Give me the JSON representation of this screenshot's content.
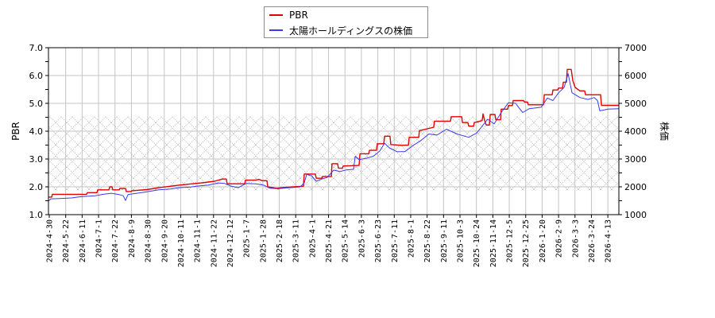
{
  "legend": {
    "items": [
      {
        "label": "PBR",
        "color": "#e00000"
      },
      {
        "label": "太陽ホールディングスの株価",
        "color": "#3a3aee"
      }
    ]
  },
  "axes": {
    "left_label": "PBR",
    "right_label": "株価",
    "left_ticks": [
      "1.0",
      "2.0",
      "3.0",
      "4.0",
      "5.0",
      "6.0",
      "7.0"
    ],
    "right_ticks": [
      "1000",
      "2000",
      "3000",
      "4000",
      "5000",
      "6000",
      "7000"
    ]
  },
  "chart_data": {
    "type": "line",
    "title": "",
    "xlabel": "",
    "ylabel": "PBR",
    "y2label": "株価",
    "ylim": [
      1.0,
      7.0
    ],
    "y2lim": [
      1000,
      7000
    ],
    "grid": true,
    "legend_position": "top-center",
    "x_note": "x values are positions in tick-interval units (0 = 2024-4-30, 34 = 2026-4-13)",
    "categories": [
      "2024-4-30",
      "2024-5-22",
      "2024-6-11",
      "2024-7-1",
      "2024-7-22",
      "2024-8-9",
      "2024-8-30",
      "2024-9-20",
      "2024-10-11",
      "2024-11-1",
      "2024-11-22",
      "2024-12-12",
      "2025-1-7",
      "2025-1-28",
      "2025-2-18",
      "2025-3-11",
      "2025-4-1",
      "2025-4-21",
      "2025-5-14",
      "2025-6-3",
      "2025-6-23",
      "2025-7-11",
      "2025-8-1",
      "2025-8-22",
      "2025-9-11",
      "2025-10-3",
      "2025-10-24",
      "2025-11-14",
      "2025-12-5",
      "2025-12-25",
      "2026-1-20",
      "2026-2-9",
      "2026-3-3",
      "2026-3-24",
      "2026-4-13"
    ],
    "industry_pbr_band": {
      "low": 1.86,
      "high": 4.54,
      "style": "crosshatch"
    },
    "series": [
      {
        "name": "PBR",
        "axis": "left",
        "color": "#e00000",
        "points": [
          [
            -0.05,
            1.63
          ],
          [
            0.15,
            1.63
          ],
          [
            0.19,
            1.73
          ],
          [
            2.27,
            1.73
          ],
          [
            2.32,
            1.79
          ],
          [
            2.9,
            1.79
          ],
          [
            2.95,
            1.89
          ],
          [
            3.63,
            1.89
          ],
          [
            3.68,
            2.0
          ],
          [
            3.82,
            2.0
          ],
          [
            3.87,
            1.89
          ],
          [
            4.26,
            1.89
          ],
          [
            4.3,
            1.94
          ],
          [
            4.64,
            1.94
          ],
          [
            4.69,
            1.83
          ],
          [
            4.98,
            1.83
          ],
          [
            5.03,
            1.86
          ],
          [
            5.95,
            1.9
          ],
          [
            6.67,
            1.97
          ],
          [
            7.88,
            2.06
          ],
          [
            9.24,
            2.14
          ],
          [
            10.06,
            2.2
          ],
          [
            10.54,
            2.28
          ],
          [
            10.78,
            2.28
          ],
          [
            10.83,
            2.11
          ],
          [
            11.51,
            2.11
          ],
          [
            11.9,
            2.11
          ],
          [
            11.94,
            2.24
          ],
          [
            12.57,
            2.24
          ],
          [
            12.77,
            2.27
          ],
          [
            12.96,
            2.22
          ],
          [
            13.25,
            2.22
          ],
          [
            13.3,
            2.0
          ],
          [
            13.83,
            1.95
          ],
          [
            14.31,
            1.98
          ],
          [
            15.38,
            2.02
          ],
          [
            15.47,
            2.02
          ],
          [
            15.52,
            2.46
          ],
          [
            16.2,
            2.46
          ],
          [
            16.25,
            2.31
          ],
          [
            16.59,
            2.31
          ],
          [
            16.63,
            2.37
          ],
          [
            17.17,
            2.37
          ],
          [
            17.21,
            2.83
          ],
          [
            17.55,
            2.83
          ],
          [
            17.6,
            2.67
          ],
          [
            17.84,
            2.67
          ],
          [
            17.89,
            2.75
          ],
          [
            18.86,
            2.77
          ],
          [
            18.91,
            3.19
          ],
          [
            19.44,
            3.19
          ],
          [
            19.49,
            3.31
          ],
          [
            19.92,
            3.31
          ],
          [
            19.97,
            3.55
          ],
          [
            20.36,
            3.55
          ],
          [
            20.41,
            3.82
          ],
          [
            20.74,
            3.82
          ],
          [
            20.79,
            3.52
          ],
          [
            21.42,
            3.49
          ],
          [
            21.86,
            3.5
          ],
          [
            21.91,
            3.78
          ],
          [
            22.49,
            3.78
          ],
          [
            22.53,
            4.02
          ],
          [
            23.11,
            4.1
          ],
          [
            23.4,
            4.14
          ],
          [
            23.45,
            4.36
          ],
          [
            24.42,
            4.36
          ],
          [
            24.47,
            4.52
          ],
          [
            25.1,
            4.52
          ],
          [
            25.15,
            4.31
          ],
          [
            25.48,
            4.31
          ],
          [
            25.53,
            4.18
          ],
          [
            25.82,
            4.18
          ],
          [
            25.87,
            4.31
          ],
          [
            26.35,
            4.38
          ],
          [
            26.4,
            4.62
          ],
          [
            26.5,
            4.38
          ],
          [
            26.6,
            4.22
          ],
          [
            26.79,
            4.22
          ],
          [
            26.84,
            4.6
          ],
          [
            27.13,
            4.6
          ],
          [
            27.18,
            4.41
          ],
          [
            27.47,
            4.41
          ],
          [
            27.51,
            4.79
          ],
          [
            27.9,
            4.79
          ],
          [
            27.95,
            4.92
          ],
          [
            28.19,
            4.92
          ],
          [
            28.24,
            5.1
          ],
          [
            28.87,
            5.1
          ],
          [
            28.92,
            5.05
          ],
          [
            29.11,
            5.05
          ],
          [
            29.16,
            4.95
          ],
          [
            30.08,
            4.95
          ],
          [
            30.13,
            5.31
          ],
          [
            30.61,
            5.31
          ],
          [
            30.66,
            5.48
          ],
          [
            30.95,
            5.48
          ],
          [
            31.0,
            5.55
          ],
          [
            31.24,
            5.55
          ],
          [
            31.29,
            5.76
          ],
          [
            31.48,
            5.76
          ],
          [
            31.53,
            6.22
          ],
          [
            31.77,
            6.22
          ],
          [
            31.87,
            5.81
          ],
          [
            32.01,
            5.57
          ],
          [
            32.3,
            5.45
          ],
          [
            32.59,
            5.45
          ],
          [
            32.64,
            5.31
          ],
          [
            33.56,
            5.31
          ],
          [
            33.61,
            4.93
          ],
          [
            34.67,
            4.93
          ]
        ]
      },
      {
        "name": "太陽ホールディングスの株価",
        "axis": "right",
        "color": "#3a3aee",
        "points": [
          [
            -0.05,
            1490
          ],
          [
            0.1,
            1570
          ],
          [
            0.63,
            1580
          ],
          [
            1.35,
            1600
          ],
          [
            1.84,
            1640
          ],
          [
            2.32,
            1660
          ],
          [
            2.8,
            1680
          ],
          [
            3.29,
            1730
          ],
          [
            3.77,
            1770
          ],
          [
            4.26,
            1720
          ],
          [
            4.5,
            1680
          ],
          [
            4.64,
            1510
          ],
          [
            4.79,
            1720
          ],
          [
            4.98,
            1740
          ],
          [
            5.71,
            1800
          ],
          [
            6.67,
            1890
          ],
          [
            7.4,
            1920
          ],
          [
            7.88,
            1970
          ],
          [
            8.61,
            1990
          ],
          [
            9.09,
            2030
          ],
          [
            9.67,
            2060
          ],
          [
            10.3,
            2140
          ],
          [
            10.69,
            2120
          ],
          [
            11.03,
            2030
          ],
          [
            11.51,
            1970
          ],
          [
            11.75,
            2050
          ],
          [
            11.99,
            2120
          ],
          [
            12.57,
            2110
          ],
          [
            13.06,
            2060
          ],
          [
            13.44,
            1950
          ],
          [
            13.93,
            1930
          ],
          [
            14.41,
            1960
          ],
          [
            14.89,
            1980
          ],
          [
            15.28,
            2000
          ],
          [
            15.52,
            2150
          ],
          [
            15.67,
            2450
          ],
          [
            15.96,
            2400
          ],
          [
            16.25,
            2200
          ],
          [
            16.59,
            2280
          ],
          [
            16.92,
            2340
          ],
          [
            17.31,
            2600
          ],
          [
            17.7,
            2550
          ],
          [
            18.09,
            2610
          ],
          [
            18.52,
            2630
          ],
          [
            18.62,
            3090
          ],
          [
            18.86,
            2980
          ],
          [
            19.25,
            3020
          ],
          [
            19.73,
            3100
          ],
          [
            20.12,
            3290
          ],
          [
            20.41,
            3570
          ],
          [
            20.7,
            3400
          ],
          [
            21.18,
            3260
          ],
          [
            21.66,
            3270
          ],
          [
            22.15,
            3490
          ],
          [
            22.63,
            3670
          ],
          [
            23.11,
            3900
          ],
          [
            23.6,
            3860
          ],
          [
            24.18,
            4070
          ],
          [
            24.81,
            3900
          ],
          [
            25.53,
            3780
          ],
          [
            26.01,
            3930
          ],
          [
            26.4,
            4220
          ],
          [
            26.69,
            4430
          ],
          [
            27.08,
            4260
          ],
          [
            27.51,
            4670
          ],
          [
            27.95,
            5020
          ],
          [
            28.39,
            5000
          ],
          [
            28.58,
            4850
          ],
          [
            28.82,
            4670
          ],
          [
            29.21,
            4810
          ],
          [
            29.94,
            4860
          ],
          [
            30.32,
            5190
          ],
          [
            30.66,
            5100
          ],
          [
            31.0,
            5380
          ],
          [
            31.34,
            5570
          ],
          [
            31.58,
            6070
          ],
          [
            31.82,
            5380
          ],
          [
            32.3,
            5210
          ],
          [
            32.79,
            5140
          ],
          [
            33.17,
            5210
          ],
          [
            33.37,
            5100
          ],
          [
            33.51,
            4730
          ],
          [
            34.0,
            4790
          ],
          [
            34.67,
            4810
          ]
        ]
      }
    ]
  }
}
